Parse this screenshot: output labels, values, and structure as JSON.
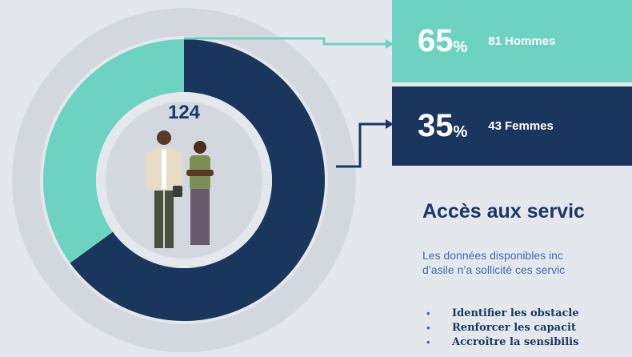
{
  "chart_data": {
    "type": "pie",
    "donut": true,
    "total": 124,
    "unit": "%",
    "categories": [
      "Hommes",
      "Femmes"
    ],
    "values": [
      65,
      35
    ],
    "counts": [
      81,
      43
    ],
    "colors": [
      "#1b365d",
      "#6dd3c0"
    ],
    "box_colors": [
      "#6dd3c0",
      "#1b365d"
    ]
  },
  "text": {
    "heading": "Accès aux servic",
    "paragraph": [
      "Les données disponibles inc",
      "d’asile n’a sollicité ces servic"
    ],
    "bullets": [
      "Identifier les obstacle",
      "Renforcer les capacit",
      "Accroître la sensibilis"
    ]
  }
}
